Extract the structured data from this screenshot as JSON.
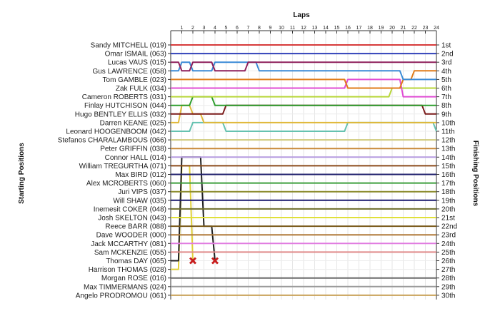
{
  "chart_data": {
    "type": "line",
    "title": "Laps",
    "ylabel_left": "Starting Positions",
    "ylabel_right": "Finishing Positions",
    "laps": [
      1,
      2,
      3,
      4,
      5,
      6,
      7,
      8,
      9,
      10,
      11,
      12,
      13,
      14,
      15,
      16,
      17,
      18,
      19,
      20,
      21,
      22,
      23,
      24
    ],
    "drivers": [
      "Sandy MITCHELL (019)",
      "Omar ISMAIL (063)",
      "Lucas VAUS (015)",
      "Gus LAWRENCE (058)",
      "Tom GAMBLE (023)",
      "Zak FULK (034)",
      "Cameron ROBERTS (031)",
      "Finlay HUTCHISON (044)",
      "Hugo BENTLEY ELLIS (032)",
      "Darren KEANE (025)",
      "Leonard HOOGENBOOM (042)",
      "Stefanos CHARALAMBOUS (066)",
      "Peter GRIFFIN (038)",
      "Connor HALL (014)",
      "William TREGURTHA (071)",
      "Max BIRD (012)",
      "Alex MCROBERTS (060)",
      "Juri VIPS (037)",
      "Will SHAW (035)",
      "Inemesit COKER (048)",
      "Josh SKELTON (043)",
      "Reece BARR (088)",
      "Dave WOODER (000)",
      "Jack MCCARTHY (081)",
      "Sam MCKENZIE (055)",
      "Thomas DAY (065)",
      "Harrison THOMAS (028)",
      "Morgan ROSE (016)",
      "Max TIMMERMANS (024)",
      "Angelo PRODROMOU (061)"
    ],
    "finishing_labels": [
      "1st",
      "2nd",
      "3rd",
      "4th",
      "5th",
      "6th",
      "7th",
      "8th",
      "9th",
      "10th",
      "11th",
      "12th",
      "13th",
      "14th",
      "15th",
      "16th",
      "17th",
      "18th",
      "19th",
      "20th",
      "21st",
      "22nd",
      "23rd",
      "24th",
      "25th",
      "26th",
      "27th",
      "28th",
      "29th",
      "30th"
    ],
    "series": [
      {
        "color": "#d63a3a",
        "positions": [
          1,
          1,
          1,
          1,
          1,
          1,
          1,
          1,
          1,
          1,
          1,
          1,
          1,
          1,
          1,
          1,
          1,
          1,
          1,
          1,
          1,
          1,
          1,
          1,
          1
        ]
      },
      {
        "color": "#3040b8",
        "positions": [
          2,
          2,
          2,
          2,
          2,
          2,
          2,
          2,
          2,
          2,
          2,
          2,
          2,
          2,
          2,
          2,
          2,
          2,
          2,
          2,
          2,
          2,
          2,
          2,
          2
        ]
      },
      {
        "color": "#8e1f5b",
        "positions": [
          3,
          4,
          3,
          3,
          4,
          4,
          4,
          3,
          3,
          3,
          3,
          3,
          3,
          3,
          3,
          3,
          3,
          3,
          3,
          3,
          3,
          3,
          3,
          3,
          3
        ]
      },
      {
        "color": "#3a8ad6",
        "positions": [
          4,
          3,
          4,
          4,
          3,
          3,
          3,
          3,
          4,
          4,
          4,
          4,
          4,
          4,
          4,
          4,
          4,
          4,
          4,
          4,
          4,
          5,
          5,
          5,
          5
        ]
      },
      {
        "color": "#e07c1a",
        "positions": [
          5,
          5,
          5,
          5,
          5,
          5,
          5,
          5,
          5,
          5,
          5,
          5,
          5,
          5,
          5,
          5,
          6,
          6,
          6,
          6,
          6,
          5,
          4,
          4,
          4
        ]
      },
      {
        "color": "#e04cd4",
        "positions": [
          6,
          6,
          6,
          6,
          6,
          6,
          6,
          6,
          6,
          6,
          6,
          6,
          6,
          6,
          6,
          6,
          5,
          5,
          5,
          5,
          5,
          7,
          7,
          7,
          7
        ]
      },
      {
        "color": "#b8d63a",
        "positions": [
          7,
          7,
          7,
          7,
          7,
          7,
          7,
          7,
          7,
          7,
          7,
          7,
          7,
          7,
          7,
          7,
          7,
          7,
          7,
          7,
          6,
          6,
          6,
          6,
          6
        ]
      },
      {
        "color": "#2e9e2e",
        "positions": [
          8,
          8,
          7,
          7,
          8,
          8,
          8,
          8,
          8,
          8,
          8,
          8,
          8,
          8,
          8,
          8,
          8,
          8,
          8,
          8,
          8,
          8,
          8,
          8,
          8
        ]
      },
      {
        "color": "#7a1a1a",
        "positions": [
          9,
          9,
          9,
          9,
          9,
          8,
          8,
          8,
          8,
          8,
          8,
          8,
          8,
          8,
          8,
          8,
          8,
          8,
          8,
          8,
          8,
          8,
          8,
          9,
          9
        ]
      },
      {
        "color": "#e0b83a",
        "positions": [
          10,
          8,
          9,
          10,
          10,
          10,
          10,
          10,
          10,
          10,
          10,
          10,
          10,
          10,
          10,
          10,
          10,
          10,
          10,
          10,
          10,
          10,
          10,
          10,
          10
        ]
      },
      {
        "color": "#66c2b0",
        "positions": [
          11,
          11,
          10,
          10,
          10,
          11,
          11,
          11,
          11,
          11,
          11,
          11,
          11,
          11,
          11,
          11,
          10,
          10,
          10,
          10,
          10,
          10,
          10,
          10,
          11
        ]
      },
      {
        "color": "#cfc97a",
        "positions": [
          12,
          12,
          12,
          12,
          12,
          12,
          12,
          12,
          12,
          12,
          12,
          12,
          12,
          12,
          12,
          12,
          12,
          12,
          12,
          12,
          12,
          12,
          12,
          12,
          12
        ]
      },
      {
        "color": "#c98a3a",
        "positions": [
          13,
          13,
          13,
          13,
          13,
          13,
          13,
          13,
          13,
          13,
          13,
          13,
          13,
          13,
          13,
          13,
          13,
          13,
          13,
          13,
          13,
          13,
          13,
          13,
          13
        ]
      },
      {
        "color": "#b59be0",
        "positions": [
          14,
          14,
          14,
          14,
          14,
          14,
          14,
          14,
          14,
          14,
          14,
          14,
          14,
          14,
          14,
          14,
          14,
          14,
          14,
          14,
          14,
          14,
          14,
          14,
          14
        ]
      },
      {
        "color": "#8a4a1a",
        "positions": [
          15,
          15,
          15,
          15,
          15,
          15,
          15,
          15,
          15,
          15,
          15,
          15,
          15,
          15,
          15,
          15,
          15,
          15,
          15,
          15,
          15,
          15,
          15,
          15,
          15
        ]
      },
      {
        "color": "#22226e",
        "positions": [
          16,
          16,
          16,
          16,
          16,
          16,
          16,
          16,
          16,
          16,
          16,
          16,
          16,
          16,
          16,
          16,
          16,
          16,
          16,
          16,
          16,
          16,
          16,
          16,
          16
        ]
      },
      {
        "color": "#3c9e3c",
        "positions": [
          17,
          17,
          17,
          17,
          17,
          17,
          17,
          17,
          17,
          17,
          17,
          17,
          17,
          17,
          17,
          17,
          17,
          17,
          17,
          17,
          17,
          17,
          17,
          17,
          17
        ]
      },
      {
        "color": "#8a8a2a",
        "positions": [
          18,
          18,
          18,
          18,
          18,
          18,
          18,
          18,
          18,
          18,
          18,
          18,
          18,
          18,
          18,
          18,
          18,
          18,
          18,
          18,
          18,
          18,
          18,
          18,
          18
        ]
      },
      {
        "color": "#1a1a6e",
        "positions": [
          19,
          19,
          19,
          19,
          19,
          19,
          19,
          19,
          19,
          19,
          19,
          19,
          19,
          19,
          19,
          19,
          19,
          19,
          19,
          19,
          19,
          19,
          19,
          19,
          19
        ]
      },
      {
        "color": "#6e6e2a",
        "positions": [
          20,
          20,
          20,
          20,
          20,
          20,
          20,
          20,
          20,
          20,
          20,
          20,
          20,
          20,
          20,
          20,
          20,
          20,
          20,
          20,
          20,
          20,
          20,
          20,
          20
        ]
      },
      {
        "color": "#e0e03a",
        "positions": [
          21,
          21,
          21,
          21,
          21,
          21,
          21,
          21,
          21,
          21,
          21,
          21,
          21,
          21,
          21,
          21,
          21,
          21,
          21,
          21,
          21,
          21,
          21,
          21,
          21
        ]
      },
      {
        "color": "#7a5a1a",
        "positions": [
          22,
          22,
          22,
          22,
          22,
          22,
          22,
          22,
          22,
          22,
          22,
          22,
          22,
          22,
          22,
          22,
          22,
          22,
          22,
          22,
          22,
          22,
          22,
          22,
          22
        ]
      },
      {
        "color": "#b07a3a",
        "positions": [
          23,
          23,
          23,
          23,
          23,
          23,
          23,
          23,
          23,
          23,
          23,
          23,
          23,
          23,
          23,
          23,
          23,
          23,
          23,
          23,
          23,
          23,
          23,
          23,
          23
        ]
      },
      {
        "color": "#e07ae0",
        "positions": [
          24,
          24,
          24,
          24,
          24,
          24,
          24,
          24,
          24,
          24,
          24,
          24,
          24,
          24,
          24,
          24,
          24,
          24,
          24,
          24,
          24,
          24,
          24,
          24,
          24
        ]
      },
      {
        "color": "#e08a8a",
        "positions": [
          25,
          25,
          25,
          25,
          25,
          25,
          25,
          25,
          25,
          25,
          25,
          25,
          25,
          25,
          25,
          25,
          25,
          25,
          25,
          25,
          25,
          25,
          25,
          25,
          25
        ]
      },
      {
        "color": "#222222",
        "positions": [
          26,
          14,
          14,
          22,
          26
        ],
        "retired_at": 4
      },
      {
        "color": "#e0d03a",
        "positions": [
          27,
          15,
          26
        ],
        "retired_at": 2
      },
      {
        "color": "#6a6a6a",
        "positions": [
          28
        ]
      },
      {
        "color": "#9a9a9a",
        "positions": [
          29
        ]
      },
      {
        "color": "#c9a25a",
        "positions": [
          30
        ]
      }
    ]
  }
}
